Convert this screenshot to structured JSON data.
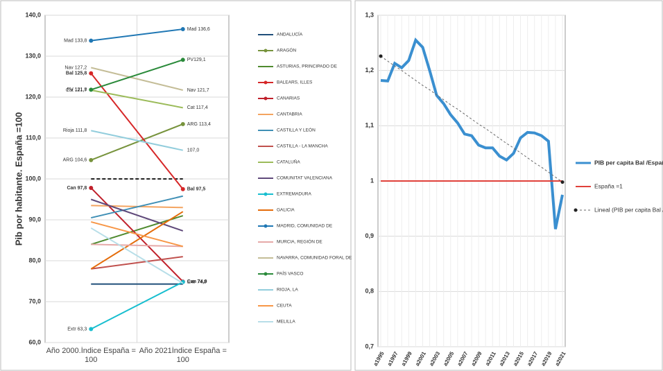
{
  "chart_data": [
    {
      "type": "line",
      "y_label": "Pib por habitante.  España =100",
      "categories": [
        "Año 2000.Índice España = 100",
        "Año 2021Índice España = 100"
      ],
      "ylim": [
        60,
        140
      ],
      "yticks": [
        {
          "value": 60,
          "label": "60,0"
        },
        {
          "value": 70,
          "label": "70,0"
        },
        {
          "value": 80,
          "label": "80,0"
        },
        {
          "value": 90,
          "label": "90,0"
        },
        {
          "value": 100,
          "label": "100,0"
        },
        {
          "value": 110,
          "label": "110,0"
        },
        {
          "value": 120,
          "label": "120,0"
        },
        {
          "value": 130,
          "label": "130,0"
        },
        {
          "value": 140,
          "label": "140,0"
        }
      ],
      "grid": true,
      "reference_line": 100,
      "legend": "right",
      "series": [
        {
          "name": "ANDALUCÍA",
          "color": "#1f4e79",
          "values": [
            74.3,
            74.3
          ]
        },
        {
          "name": "ARAGÓN",
          "color": "#77933c",
          "marker": true,
          "values": [
            104.6,
            113.4
          ],
          "value_labels": [
            "ARG 104,6",
            "ARG 113,4"
          ]
        },
        {
          "name": "ASTURIAS, PRINCIPADO DE",
          "color": "#4f8a2f",
          "values": [
            84,
            91
          ]
        },
        {
          "name": "BALEARS, ILLES",
          "color": "#d62728",
          "marker": true,
          "values": [
            125.8,
            97.5
          ],
          "value_labels": [
            "Bal 125,8",
            "Bal 97,5"
          ]
        },
        {
          "name": "CANARIAS",
          "color": "#c0202b",
          "marker": true,
          "values": [
            97.8,
            74.9
          ],
          "value_labels": [
            "Can 97,8",
            "Can 74,9"
          ]
        },
        {
          "name": "CANTABRIA",
          "color": "#f4a460",
          "values": [
            93.5,
            93
          ]
        },
        {
          "name": "CASTILLA Y LEÓN",
          "color": "#3f8fb5",
          "values": [
            90.5,
            95.8
          ]
        },
        {
          "name": "CASTILLA - LA MANCHA",
          "color": "#c0504d",
          "values": [
            78,
            81
          ]
        },
        {
          "name": "CATALUÑA",
          "color": "#9bbb59",
          "values": [
            121.7,
            117.4
          ],
          "value_labels": [
            "Cat 121,7",
            "Cat 117,4"
          ]
        },
        {
          "name": "COMUNITAT VALENCIANA",
          "color": "#5f497a",
          "values": [
            95,
            87.3
          ]
        },
        {
          "name": "EXTREMADURA",
          "color": "#17becf",
          "marker": true,
          "values": [
            63.3,
            74.8
          ],
          "value_labels": [
            "Extr 63,3",
            "Extr 74,8"
          ]
        },
        {
          "name": "GALICIA",
          "color": "#e46c0a",
          "values": [
            78,
            92
          ]
        },
        {
          "name": "MADRID, COMUNIDAD DE",
          "color": "#1f77b4",
          "marker": true,
          "values": [
            133.8,
            136.6
          ],
          "value_labels": [
            "Mad 133,8",
            "Mad 136,6"
          ]
        },
        {
          "name": "MURCIA, REGIÓN DE",
          "color": "#e6a9a8",
          "values": [
            84,
            83.5
          ]
        },
        {
          "name": "NAVARRA, COMUNIDAD FORAL DE",
          "color": "#c4bd97",
          "values": [
            127.2,
            121.7
          ],
          "value_labels": [
            "Nav 127,2",
            "Nav 121,7"
          ]
        },
        {
          "name": "PAÍS VASCO",
          "color": "#2a8a3a",
          "marker": true,
          "values": [
            121.8,
            129.1
          ],
          "value_labels": [
            "PV 121,8",
            "PV129,1"
          ]
        },
        {
          "name": "RIOJA, LA",
          "color": "#92cddc",
          "values": [
            111.8,
            107.0
          ],
          "value_labels": [
            "Rioja 111,8",
            "107,0"
          ]
        },
        {
          "name": "CEUTA",
          "color": "#f79646",
          "values": [
            89.5,
            83.5
          ]
        },
        {
          "name": "MELILLA",
          "color": "#b7dee8",
          "values": [
            88,
            74.5
          ]
        }
      ]
    },
    {
      "type": "line",
      "categories": [
        "a1995",
        null,
        "a1997",
        null,
        "a1999",
        null,
        "a2001",
        null,
        "a2003",
        null,
        "a2005",
        null,
        "a2007",
        null,
        "a2009",
        null,
        "a2011",
        null,
        "a2013",
        null,
        "a2015",
        null,
        "a2017",
        null,
        "a2019",
        null,
        "a2021"
      ],
      "ylim": [
        0.7,
        1.3
      ],
      "yticks": [
        {
          "value": 0.7,
          "label": "0,7"
        },
        {
          "value": 0.8,
          "label": "0,8"
        },
        {
          "value": 0.9,
          "label": "0,9"
        },
        1,
        {
          "value": 1.1,
          "label": "1,1"
        },
        {
          "value": 1.2,
          "label": "1,2"
        },
        {
          "value": 1.3,
          "label": "1,3"
        }
      ],
      "grid": true,
      "legend": "right",
      "series": [
        {
          "name": "PIB per capita Bal /España",
          "color": "#3a8fd0",
          "width": 4,
          "values": [
            1.182,
            1.181,
            1.213,
            1.205,
            1.218,
            1.255,
            1.242,
            1.2,
            1.155,
            1.14,
            1.12,
            1.105,
            1.085,
            1.082,
            1.065,
            1.06,
            1.06,
            1.045,
            1.038,
            1.05,
            1.078,
            1.088,
            1.087,
            1.082,
            1.072,
            0.913,
            0.975
          ]
        },
        {
          "name": "España =1",
          "color": "#e0403a",
          "width": 2,
          "values": [
            1,
            1,
            1,
            1,
            1,
            1,
            1,
            1,
            1,
            1,
            1,
            1,
            1,
            1,
            1,
            1,
            1,
            1,
            1,
            1,
            1,
            1,
            1,
            1,
            1,
            1,
            1
          ]
        },
        {
          "name": "Lineal (PIB per capita Bal /España)",
          "color": "#666666",
          "width": 1,
          "dash": true,
          "values": [
            1.226,
            1.217,
            1.208,
            1.2,
            1.191,
            1.182,
            1.173,
            1.165,
            1.156,
            1.147,
            1.138,
            1.13,
            1.121,
            1.112,
            1.103,
            1.095,
            1.086,
            1.077,
            1.068,
            1.06,
            1.051,
            1.042,
            1.033,
            1.025,
            1.016,
            1.007,
            0.998
          ]
        }
      ]
    }
  ]
}
